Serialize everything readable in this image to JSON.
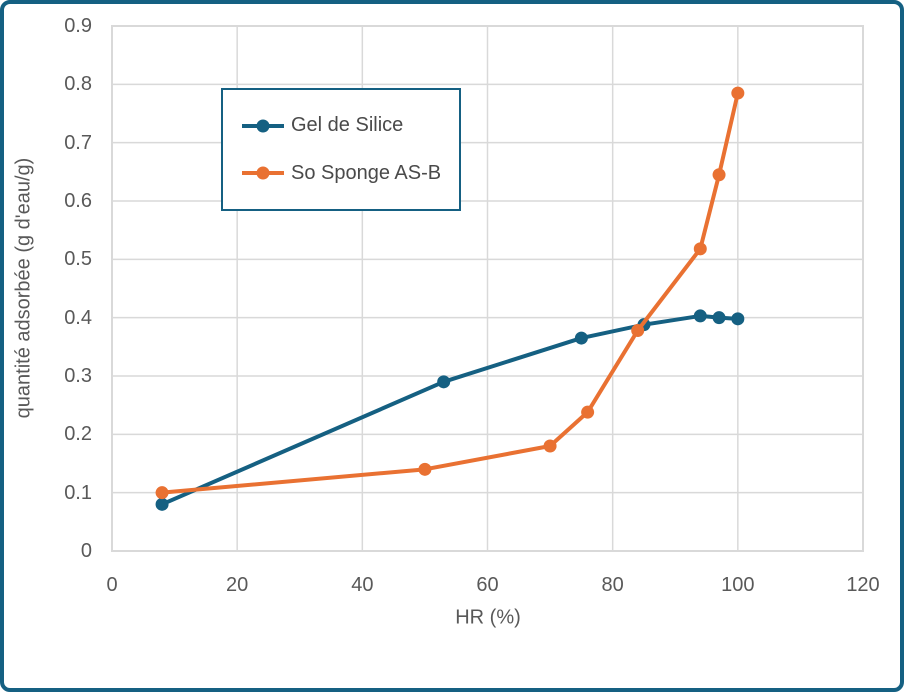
{
  "window": {
    "border_color": "#156082",
    "background": "#ffffff"
  },
  "styles": {
    "grid_color": "#D9D9D9",
    "tick_color": "#595959",
    "legend_text_color": "#4a4a4a",
    "legend_border_color": "#156082"
  },
  "chart_data": {
    "type": "line",
    "title": "",
    "xlabel": "HR (%)",
    "ylabel": "quantité adsorbée (g d'eau/g)",
    "xlim": [
      0,
      120
    ],
    "ylim": [
      0,
      0.9
    ],
    "grid": true,
    "legend_position": "inside-top-left",
    "x_ticks": {
      "values": [
        0,
        20,
        40,
        60,
        80,
        100,
        120
      ],
      "labels": [
        "0",
        "20",
        "40",
        "60",
        "80",
        "100",
        "120"
      ]
    },
    "y_ticks": {
      "values": [
        0,
        0.1,
        0.2,
        0.3,
        0.4,
        0.5,
        0.6,
        0.7,
        0.8,
        0.9
      ],
      "labels": [
        "0",
        "0.1",
        "0.2",
        "0.3",
        "0.4",
        "0.5",
        "0.6",
        "0.7",
        "0.8",
        "0.9"
      ]
    },
    "series": [
      {
        "name": "Gel de Silice",
        "color": "#156082",
        "points": [
          [
            8,
            0.08
          ],
          [
            53,
            0.29
          ],
          [
            75,
            0.365
          ],
          [
            85,
            0.388
          ],
          [
            94,
            0.403
          ],
          [
            97,
            0.4
          ],
          [
            100,
            0.398
          ]
        ]
      },
      {
        "name": "So Sponge AS-B",
        "color": "#E97132",
        "points": [
          [
            8,
            0.1
          ],
          [
            50,
            0.14
          ],
          [
            70,
            0.18
          ],
          [
            76,
            0.238
          ],
          [
            84,
            0.378
          ],
          [
            94,
            0.518
          ],
          [
            97,
            0.645
          ],
          [
            100,
            0.785
          ]
        ]
      }
    ]
  }
}
